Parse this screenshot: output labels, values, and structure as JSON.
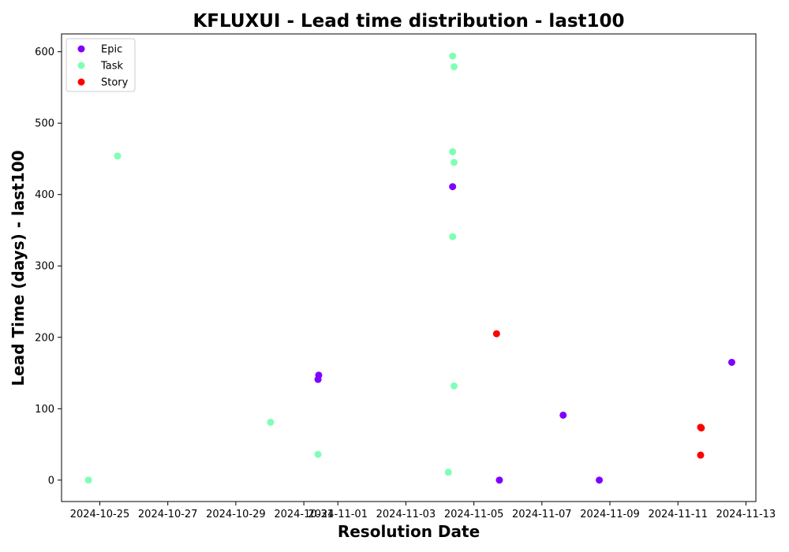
{
  "chart_data": {
    "type": "scatter",
    "title": "KFLUXUI - Lead time distribution - last100",
    "xlabel": "Resolution Date",
    "ylabel": "Lead Time (days) - last100",
    "x_type": "date",
    "xlim": [
      "2024-10-23T21:00",
      "2024-11-13T07:00"
    ],
    "ylim": [
      -30,
      625
    ],
    "x_ticks": [
      "2024-10-25",
      "2024-10-27",
      "2024-10-29",
      "2024-10-31",
      "2024-11-01",
      "2024-11-03",
      "2024-11-05",
      "2024-11-07",
      "2024-11-09",
      "2024-11-11",
      "2024-11-13"
    ],
    "y_ticks": [
      0,
      100,
      200,
      300,
      400,
      500,
      600
    ],
    "grid": false,
    "legend_position": "top-left",
    "series": [
      {
        "name": "Epic",
        "color": "#8000ff",
        "points": [
          {
            "x": "2024-10-31T10:30",
            "y": 147
          },
          {
            "x": "2024-10-31T10:00",
            "y": 141
          },
          {
            "x": "2024-11-04T09:00",
            "y": 411
          },
          {
            "x": "2024-11-05T18:00",
            "y": 0
          },
          {
            "x": "2024-11-07T15:00",
            "y": 91
          },
          {
            "x": "2024-11-08T16:30",
            "y": 0
          },
          {
            "x": "2024-11-12T14:00",
            "y": 165
          }
        ]
      },
      {
        "name": "Task",
        "color": "#80ffb4",
        "points": [
          {
            "x": "2024-10-24T16:00",
            "y": 0
          },
          {
            "x": "2024-10-25T12:30",
            "y": 454
          },
          {
            "x": "2024-10-30T00:30",
            "y": 81
          },
          {
            "x": "2024-10-31T10:00",
            "y": 36
          },
          {
            "x": "2024-11-04T06:00",
            "y": 11
          },
          {
            "x": "2024-11-04T09:00",
            "y": 594
          },
          {
            "x": "2024-11-04T10:00",
            "y": 579
          },
          {
            "x": "2024-11-04T09:00",
            "y": 460
          },
          {
            "x": "2024-11-04T10:00",
            "y": 445
          },
          {
            "x": "2024-11-04T09:00",
            "y": 341
          },
          {
            "x": "2024-11-04T10:00",
            "y": 132
          }
        ]
      },
      {
        "name": "Story",
        "color": "#ff0000",
        "points": [
          {
            "x": "2024-11-05T16:00",
            "y": 205
          },
          {
            "x": "2024-11-11T16:00",
            "y": 74
          },
          {
            "x": "2024-11-11T16:30",
            "y": 73
          },
          {
            "x": "2024-11-11T16:00",
            "y": 35
          }
        ]
      }
    ]
  }
}
